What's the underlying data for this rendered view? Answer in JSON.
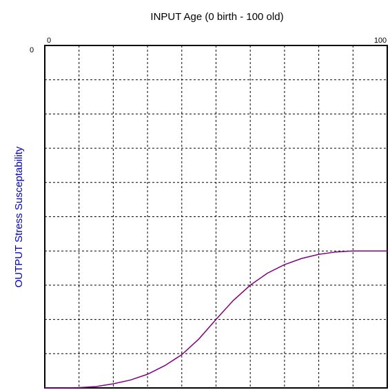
{
  "chart_data": {
    "type": "line",
    "title": "INPUT Age (0 birth - 100 old)",
    "y_label": "OUTPUT Stress Susceptability",
    "x": [
      0,
      5,
      10,
      15,
      20,
      25,
      30,
      35,
      40,
      45,
      50,
      55,
      60,
      65,
      70,
      75,
      80,
      85,
      90,
      95,
      100
    ],
    "series": [
      {
        "color": "#800080",
        "values": [
          -1,
          -1,
          -0.999,
          -0.996,
          -0.988,
          -0.977,
          -0.96,
          -0.935,
          -0.903,
          -0.857,
          -0.8,
          -0.745,
          -0.7,
          -0.665,
          -0.64,
          -0.622,
          -0.61,
          -0.603,
          -0.6,
          -0.6,
          -0.6
        ]
      }
    ],
    "xlim": [
      0,
      100
    ],
    "xticks": [
      0,
      100
    ],
    "ylim": [
      -1,
      0
    ],
    "yticks": [
      0
    ],
    "grid": true,
    "title_color": "#000000",
    "y_label_color": "#0000cc"
  }
}
